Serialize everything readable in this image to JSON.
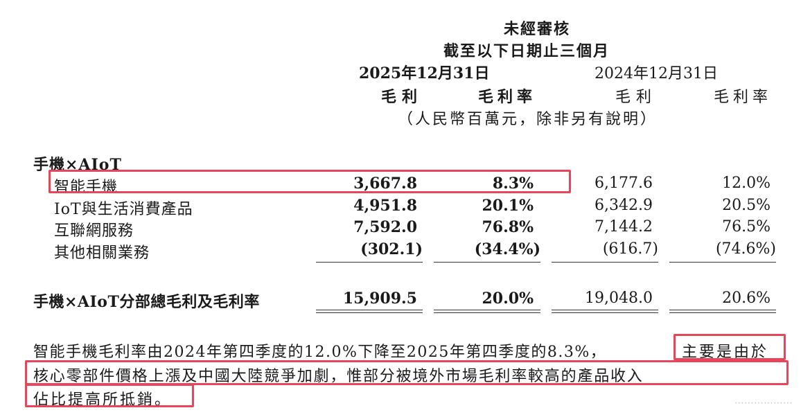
{
  "header": {
    "title": "未經審核",
    "period": "截至以下日期止三個月",
    "date_2025": "2025年12月31日",
    "date_2024": "2024年12月31日",
    "col_gp": "毛利",
    "col_gpm": "毛利率",
    "unit_note": "（人民幣百萬元，除非另有說明）"
  },
  "segment_title": "手機×AIoT",
  "rows": [
    {
      "label": "智能手機",
      "gp_2025": "3,667.8",
      "gpm_2025": "8.3%",
      "gp_2024": "6,177.6",
      "gpm_2024": "12.0%"
    },
    {
      "label": "IoT與生活消費產品",
      "gp_2025": "4,951.8",
      "gpm_2025": "20.1%",
      "gp_2024": "6,342.9",
      "gpm_2024": "20.5%"
    },
    {
      "label": "互聯網服務",
      "gp_2025": "7,592.0",
      "gpm_2025": "76.8%",
      "gp_2024": "7,144.2",
      "gpm_2024": "76.5%"
    },
    {
      "label": "其他相關業務",
      "gp_2025": "(302.1)",
      "gpm_2025": "(34.4%)",
      "gp_2024": "(616.7)",
      "gpm_2024": "(74.6%)"
    }
  ],
  "total": {
    "label": "手機×AIoT分部總毛利及毛利率",
    "gp_2025": "15,909.5",
    "gpm_2025": "20.0%",
    "gp_2024": "19,048.0",
    "gpm_2024": "20.6%"
  },
  "paragraph": {
    "line1_a": "智能手機毛利率由2024年第四季度的12.0%下降至2025年第四季度的8.3%，",
    "line1_b": "主要是由於",
    "line2": "核心零部件價格上漲及中國大陸競爭加劇，惟部分被境外市場毛利率較高的產品收入",
    "line3": "佔比提高所抵銷。"
  },
  "watermark": "⋯⋯⋯⋯⋯⋯"
}
